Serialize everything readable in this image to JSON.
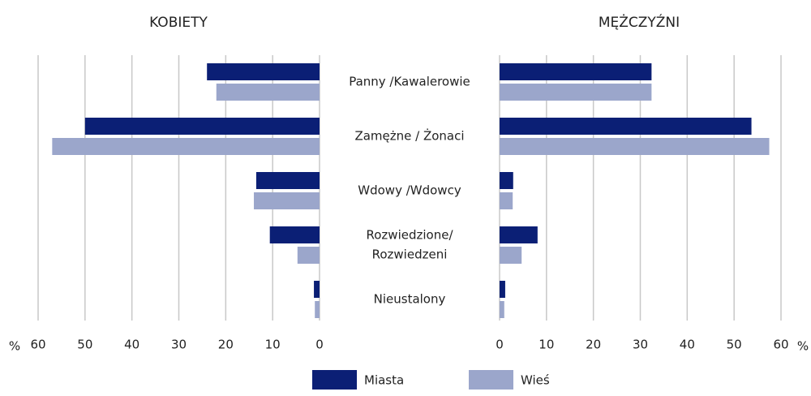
{
  "chart_data": {
    "type": "bar",
    "categories": [
      [
        "Panny /Kawalerowie"
      ],
      [
        "Zamężne / Żonaci"
      ],
      [
        "Wdowy /Wdowcy"
      ],
      [
        "Rozwiedzione/",
        "Rozwiedzeni"
      ],
      [
        "Nieustalony"
      ]
    ],
    "series": [
      {
        "name": "Miasta",
        "color": "#0b1f75"
      },
      {
        "name": "Wieś",
        "color": "#9ba6cb"
      }
    ],
    "panels": [
      {
        "title": "KOBIETY",
        "direction": "left",
        "values": [
          [
            24,
            50,
            13.5,
            10.6,
            1.2
          ],
          [
            22,
            57,
            14,
            4.7,
            1
          ]
        ]
      },
      {
        "title": "MĘŻCZYŹNI",
        "direction": "right",
        "values": [
          [
            32.4,
            53.7,
            2.9,
            8.1,
            1.2
          ],
          [
            32.4,
            57.5,
            2.8,
            4.7,
            1
          ]
        ]
      }
    ],
    "xlim": [
      0,
      60
    ],
    "xticks": [
      0,
      10,
      20,
      30,
      40,
      50,
      60
    ],
    "unit": "%",
    "grid": true
  }
}
